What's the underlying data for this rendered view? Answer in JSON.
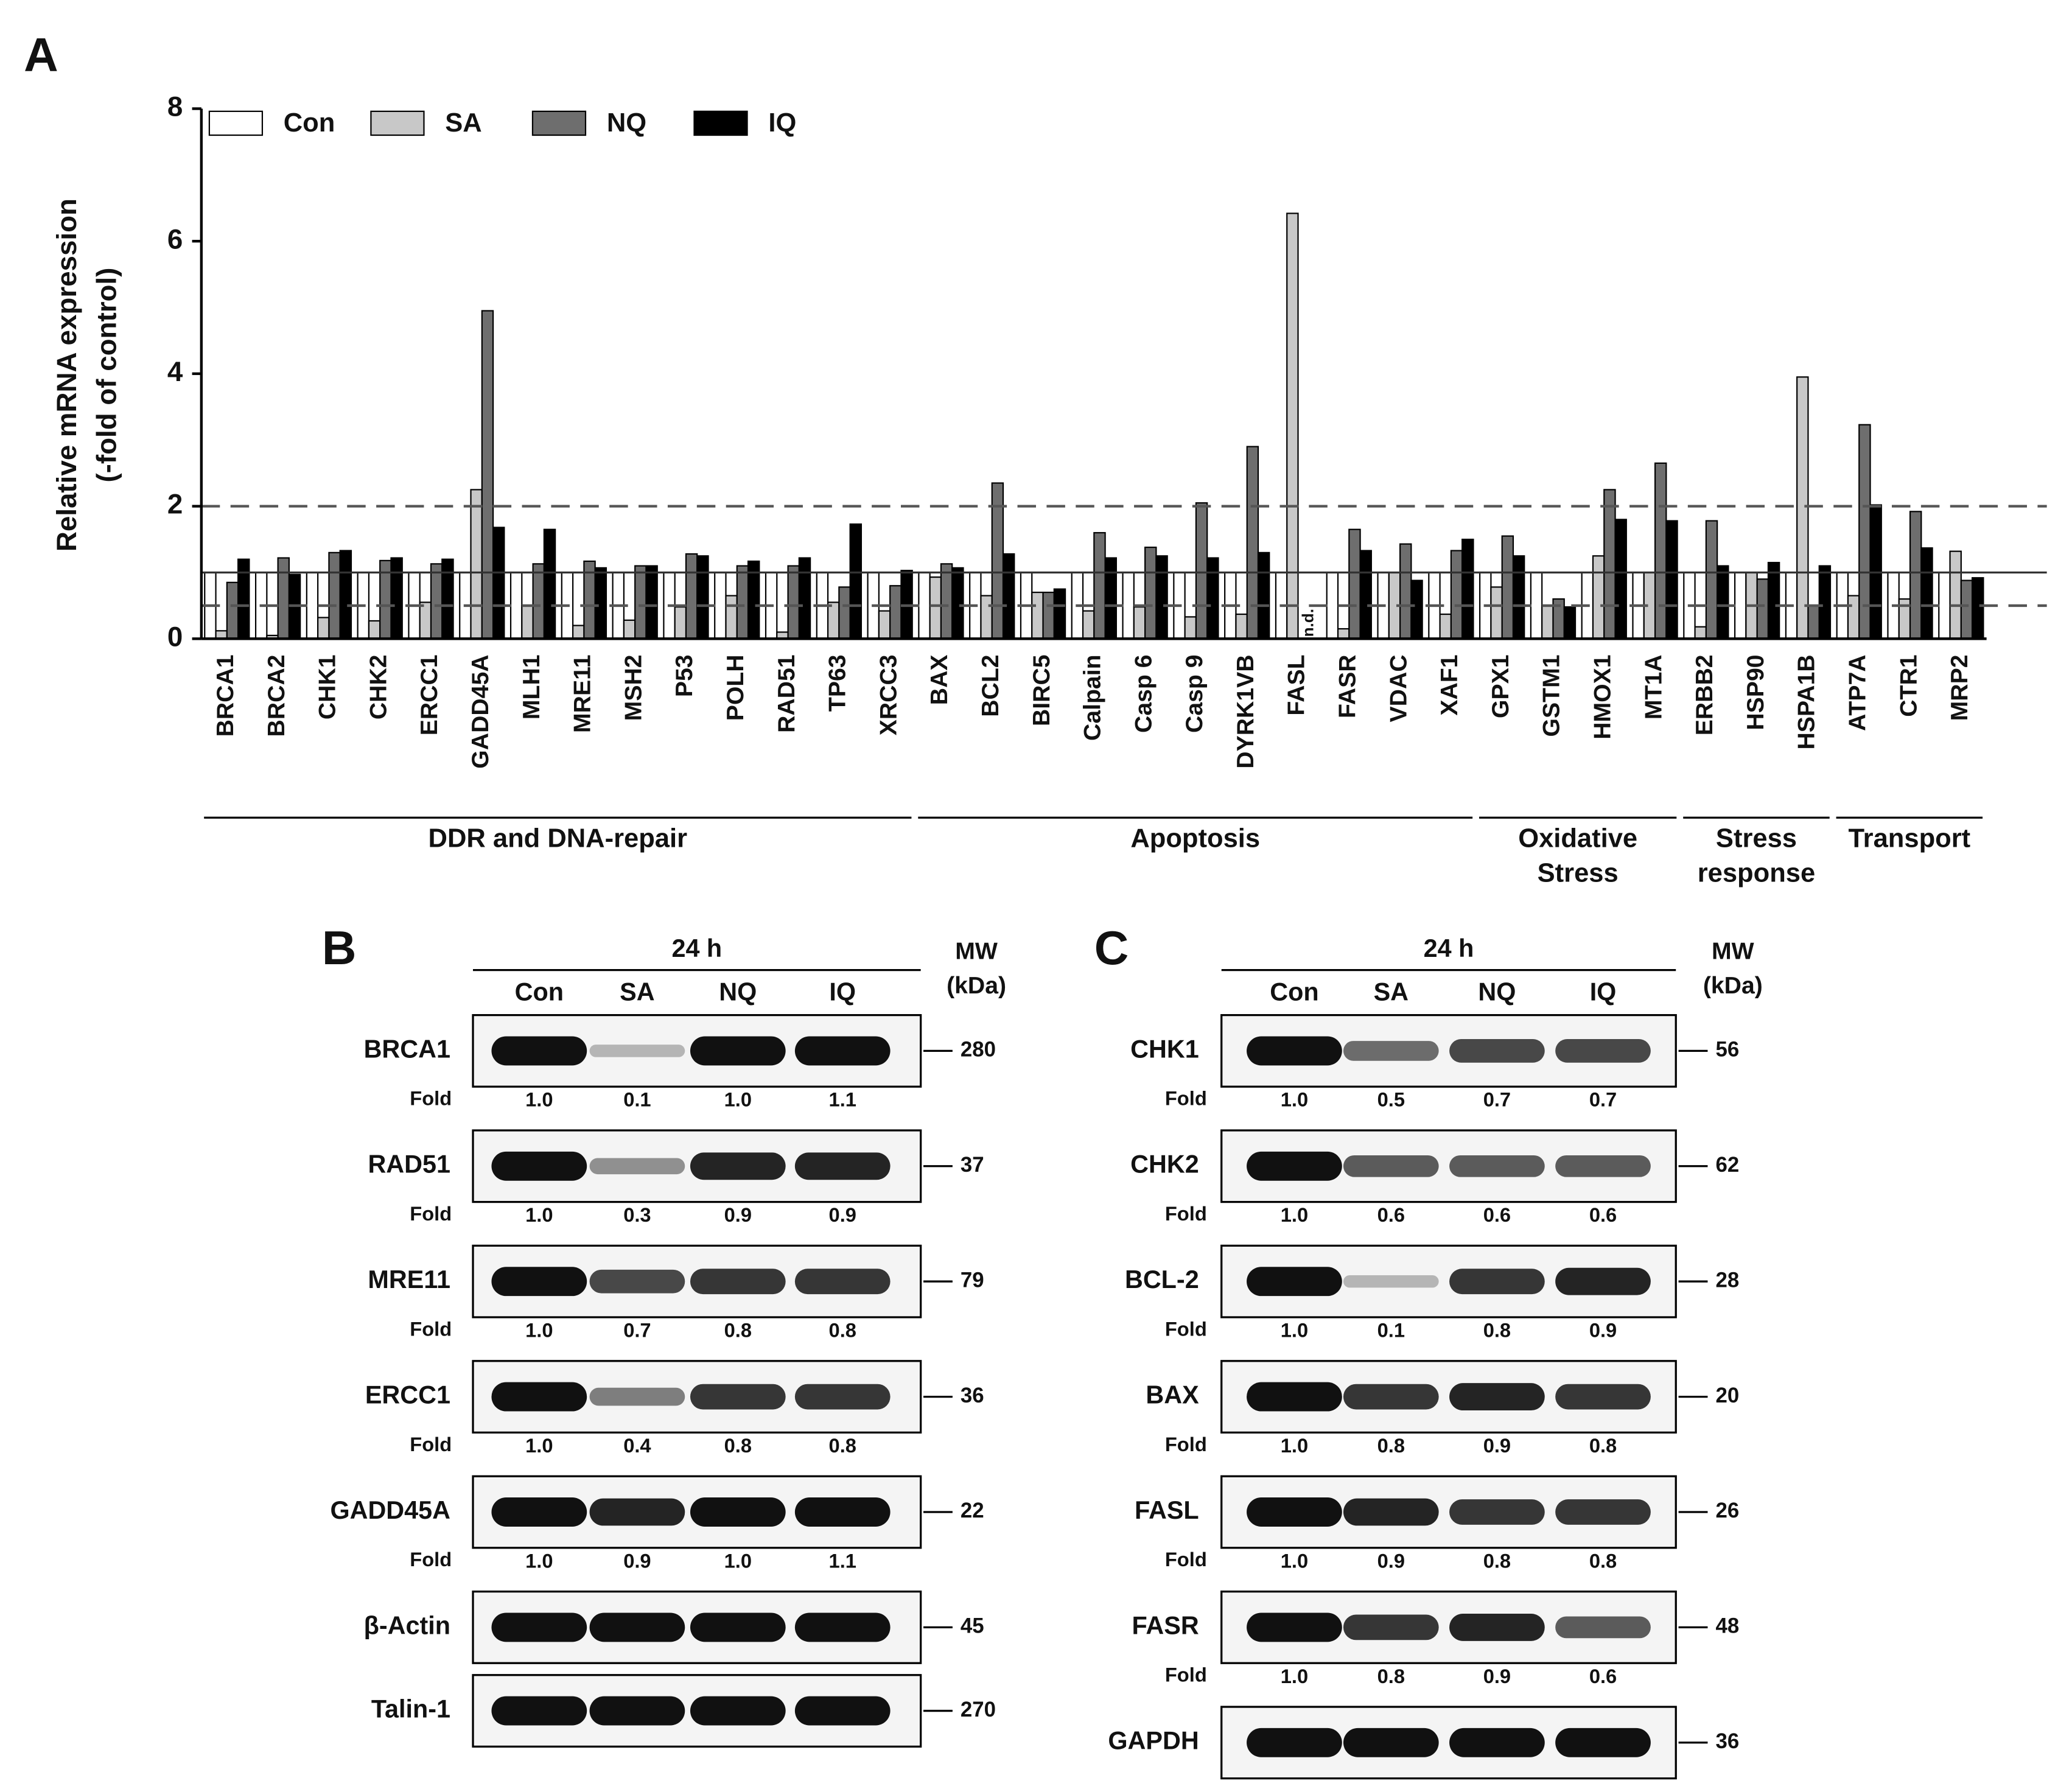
{
  "chart_data": {
    "type": "bar",
    "panel_label": "A",
    "ylabel": [
      "Relative mRNA expression",
      "(-fold of control)"
    ],
    "categories": [
      "BRCA1",
      "BRCA2",
      "CHK1",
      "CHK2",
      "ERCC1",
      "GADD45A",
      "MLH1",
      "MRE11",
      "MSH2",
      "P53",
      "POLH",
      "RAD51",
      "TP63",
      "XRCC3",
      "BAX",
      "BCL2",
      "BIRC5",
      "Calpain",
      "Casp 6",
      "Casp 9",
      "DYRK1VB",
      "FASL",
      "FASR",
      "VDAC",
      "XAF1",
      "GPX1",
      "GSTM1",
      "HMOX1",
      "MT1A",
      "ERBB2",
      "HSP90",
      "HSPA1B",
      "ATP7A",
      "CTR1",
      "MRP2"
    ],
    "series": [
      {
        "name": "Con",
        "color": "#ffffff",
        "values": [
          1,
          1,
          1,
          1,
          1,
          1,
          1,
          1,
          1,
          1,
          1,
          1,
          1,
          1,
          1,
          1,
          1,
          1,
          1,
          1,
          1,
          1,
          1,
          1,
          1,
          1,
          1,
          1,
          1,
          1,
          1,
          1,
          1,
          1,
          1
        ]
      },
      {
        "name": "SA",
        "color": "#c8c8c8",
        "values": [
          0.12,
          0.05,
          0.32,
          0.27,
          0.55,
          2.25,
          0.5,
          0.2,
          0.28,
          0.48,
          0.65,
          0.1,
          0.55,
          0.42,
          0.93,
          0.65,
          0.7,
          0.42,
          0.48,
          0.33,
          0.37,
          6.42,
          0.15,
          1,
          0.37,
          0.78,
          0.5,
          1.25,
          1,
          0.18,
          1,
          3.95,
          0.65,
          0.6,
          1.32
        ]
      },
      {
        "name": "NQ",
        "color": "#6e6e6e",
        "values": [
          0.85,
          1.22,
          1.3,
          1.18,
          1.13,
          4.95,
          1.13,
          1.17,
          1.1,
          1.28,
          1.1,
          1.1,
          0.78,
          0.8,
          1.13,
          2.35,
          0.7,
          1.6,
          1.38,
          2.05,
          2.9,
          null,
          1.65,
          1.43,
          1.33,
          1.55,
          0.6,
          2.25,
          2.65,
          1.78,
          0.9,
          0.5,
          3.23,
          1.92,
          0.88
        ],
        "value_labels": [
          null,
          null,
          null,
          null,
          null,
          null,
          null,
          null,
          null,
          null,
          null,
          null,
          null,
          null,
          null,
          null,
          null,
          null,
          null,
          null,
          null,
          "n.d.",
          null,
          null,
          null,
          null,
          null,
          null,
          null,
          null,
          null,
          null,
          null,
          null,
          null
        ]
      },
      {
        "name": "IQ",
        "color": "#000000",
        "values": [
          1.2,
          0.97,
          1.33,
          1.22,
          1.2,
          1.68,
          1.65,
          1.07,
          1.1,
          1.25,
          1.17,
          1.22,
          1.73,
          1.03,
          1.07,
          1.28,
          0.75,
          1.22,
          1.25,
          1.22,
          1.3,
          null,
          1.33,
          0.88,
          1.5,
          1.25,
          0.48,
          1.8,
          1.78,
          1.1,
          1.15,
          1.1,
          2.02,
          1.37,
          0.92
        ]
      }
    ],
    "groups": [
      {
        "label": [
          "DDR and DNA-repair"
        ],
        "first": "BRCA1",
        "last": "XRCC3"
      },
      {
        "label": [
          "Apoptosis"
        ],
        "first": "BAX",
        "last": "XAF1"
      },
      {
        "label": [
          "Oxidative",
          "Stress"
        ],
        "first": "GPX1",
        "last": "MT1A"
      },
      {
        "label": [
          "Stress",
          "response"
        ],
        "first": "ERBB2",
        "last": "HSPA1B"
      },
      {
        "label": [
          "Transport"
        ],
        "first": "ATP7A",
        "last": "MRP2"
      }
    ],
    "reference_lines": [
      {
        "value": 2,
        "style": "dashed"
      },
      {
        "value": 1,
        "style": "solid"
      },
      {
        "value": 0.5,
        "style": "dashed"
      }
    ],
    "ylim": [
      0,
      8
    ],
    "yticks": [
      0,
      2,
      4,
      6,
      8
    ],
    "legend": "top-left"
  },
  "panel_b": {
    "label": "B",
    "time": "24 h",
    "lanes": [
      "Con",
      "SA",
      "NQ",
      "IQ"
    ],
    "mw_header": [
      "MW",
      "(kDa)"
    ],
    "blots": [
      {
        "protein": "BRCA1",
        "mw": 280,
        "fold_label": "Fold",
        "folds": [
          "1.0",
          "0.1",
          "1.0",
          "1.1"
        ]
      },
      {
        "protein": "RAD51",
        "mw": 37,
        "fold_label": "Fold",
        "folds": [
          "1.0",
          "0.3",
          "0.9",
          "0.9"
        ]
      },
      {
        "protein": "MRE11",
        "mw": 79,
        "fold_label": "Fold",
        "folds": [
          "1.0",
          "0.7",
          "0.8",
          "0.8"
        ]
      },
      {
        "protein": "ERCC1",
        "mw": 36,
        "fold_label": "Fold",
        "folds": [
          "1.0",
          "0.4",
          "0.8",
          "0.8"
        ]
      },
      {
        "protein": "GADD45A",
        "mw": 22,
        "fold_label": "Fold",
        "folds": [
          "1.0",
          "0.9",
          "1.0",
          "1.1"
        ]
      },
      {
        "protein": "β-Actin",
        "mw": 45
      },
      {
        "protein": "Talin-1",
        "mw": 270
      }
    ]
  },
  "panel_c": {
    "label": "C",
    "time": "24 h",
    "lanes": [
      "Con",
      "SA",
      "NQ",
      "IQ"
    ],
    "mw_header": [
      "MW",
      "(kDa)"
    ],
    "blots": [
      {
        "protein": "CHK1",
        "mw": 56,
        "fold_label": "Fold",
        "folds": [
          "1.0",
          "0.5",
          "0.7",
          "0.7"
        ]
      },
      {
        "protein": "CHK2",
        "mw": 62,
        "fold_label": "Fold",
        "folds": [
          "1.0",
          "0.6",
          "0.6",
          "0.6"
        ]
      },
      {
        "protein": "BCL-2",
        "mw": 28,
        "fold_label": "Fold",
        "folds": [
          "1.0",
          "0.1",
          "0.8",
          "0.9"
        ]
      },
      {
        "protein": "BAX",
        "mw": 20,
        "fold_label": "Fold",
        "folds": [
          "1.0",
          "0.8",
          "0.9",
          "0.8"
        ]
      },
      {
        "protein": "FASL",
        "mw": 26,
        "fold_label": "Fold",
        "folds": [
          "1.0",
          "0.9",
          "0.8",
          "0.8"
        ]
      },
      {
        "protein": "FASR",
        "mw": 48,
        "fold_label": "Fold",
        "folds": [
          "1.0",
          "0.8",
          "0.9",
          "0.6"
        ]
      },
      {
        "protein": "GAPDH",
        "mw": 36
      }
    ]
  }
}
